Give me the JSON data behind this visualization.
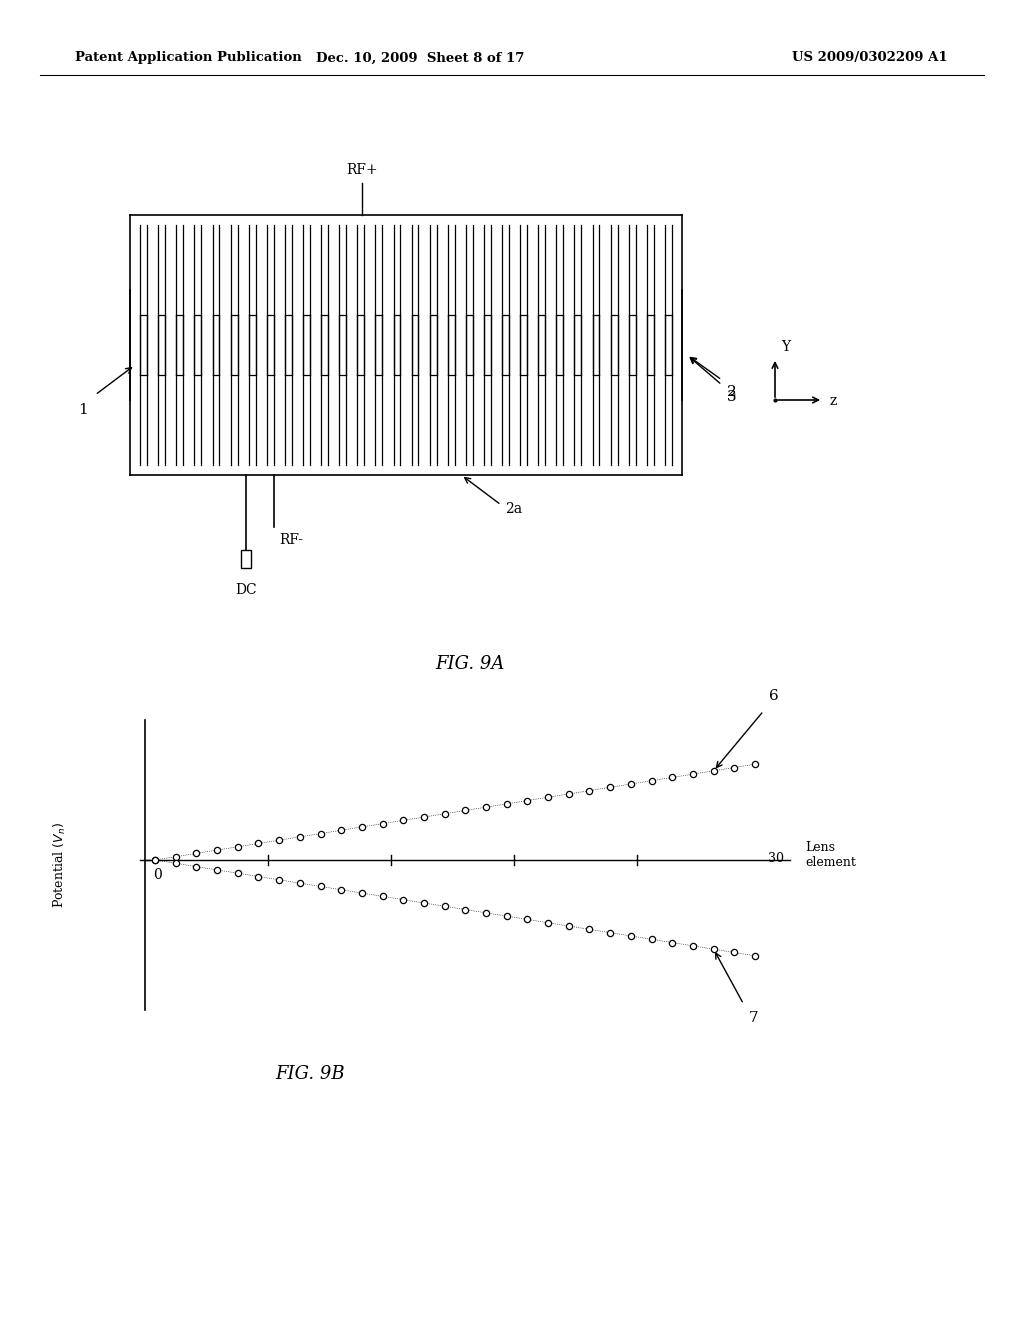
{
  "header_left": "Patent Application Publication",
  "header_center": "Dec. 10, 2009  Sheet 8 of 17",
  "header_right": "US 2009/0302209 A1",
  "fig9a_label": "FIG. 9A",
  "fig9b_label": "FIG. 9B",
  "bg_color": "#ffffff",
  "line_color": "#000000",
  "label_1": "1",
  "label_2": "2",
  "label_3": "3",
  "label_2a": "2a",
  "label_rfplus": "RF+",
  "label_rfminus": "RF-",
  "label_dc": "DC",
  "label_Y": "Y",
  "label_Z": "z",
  "upper_curve_label": "6",
  "lower_curve_label": "7",
  "label_30": "30",
  "lens_label": "Lens\nelement",
  "ylabel_text": "Potential (V",
  "zero_label": "0"
}
